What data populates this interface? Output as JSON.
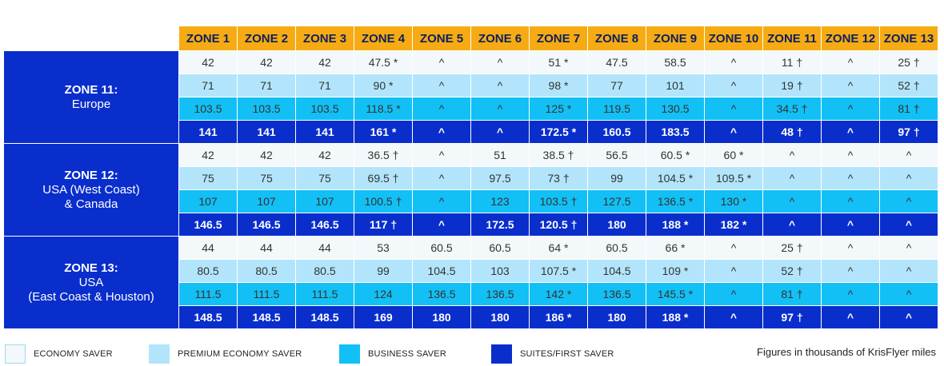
{
  "columns": [
    "ZONE 1",
    "ZONE 2",
    "ZONE 3",
    "ZONE 4",
    "ZONE 5",
    "ZONE 6",
    "ZONE 7",
    "ZONE 8",
    "ZONE 9",
    "ZONE 10",
    "ZONE 11",
    "ZONE 12",
    "ZONE 13"
  ],
  "regions": [
    {
      "name": "ZONE 11:",
      "sub": [
        "Europe"
      ],
      "rows": [
        [
          "42",
          "42",
          "42",
          "47.5 *",
          "^",
          "^",
          "51 *",
          "47.5",
          "58.5",
          "^",
          "11 †",
          "^",
          "25 †"
        ],
        [
          "71",
          "71",
          "71",
          "90 *",
          "^",
          "^",
          "98 *",
          "77",
          "101",
          "^",
          "19 †",
          "^",
          "52 †"
        ],
        [
          "103.5",
          "103.5",
          "103.5",
          "118.5 *",
          "^",
          "^",
          "125 *",
          "119.5",
          "130.5",
          "^",
          "34.5 †",
          "^",
          "81 †"
        ],
        [
          "141",
          "141",
          "141",
          "161 *",
          "^",
          "^",
          "172.5 *",
          "160.5",
          "183.5",
          "^",
          "48 †",
          "^",
          "97 †"
        ]
      ]
    },
    {
      "name": "ZONE 12:",
      "sub": [
        "USA (West Coast)",
        "& Canada"
      ],
      "rows": [
        [
          "42",
          "42",
          "42",
          "36.5 †",
          "^",
          "51",
          "38.5 †",
          "56.5",
          "60.5 *",
          "60 *",
          "^",
          "^",
          "^"
        ],
        [
          "75",
          "75",
          "75",
          "69.5 †",
          "^",
          "97.5",
          "73 †",
          "99",
          "104.5 *",
          "109.5 *",
          "^",
          "^",
          "^"
        ],
        [
          "107",
          "107",
          "107",
          "100.5 †",
          "^",
          "123",
          "103.5 †",
          "127.5",
          "136.5 *",
          "130 *",
          "^",
          "^",
          "^"
        ],
        [
          "146.5",
          "146.5",
          "146.5",
          "117 †",
          "^",
          "172.5",
          "120.5 †",
          "180",
          "188 *",
          "182 *",
          "^",
          "^",
          "^"
        ]
      ]
    },
    {
      "name": "ZONE 13:",
      "sub": [
        "USA",
        "(East Coast & Houston)"
      ],
      "rows": [
        [
          "44",
          "44",
          "44",
          "53",
          "60.5",
          "60.5",
          "64 *",
          "60.5",
          "66 *",
          "^",
          "25 †",
          "^",
          "^"
        ],
        [
          "80.5",
          "80.5",
          "80.5",
          "99",
          "104.5",
          "103",
          "107.5 *",
          "104.5",
          "109 *",
          "^",
          "52 †",
          "^",
          "^"
        ],
        [
          "111.5",
          "111.5",
          "111.5",
          "124",
          "136.5",
          "136.5",
          "142 *",
          "136.5",
          "145.5 *",
          "^",
          "81 †",
          "^",
          "^"
        ],
        [
          "148.5",
          "148.5",
          "148.5",
          "169",
          "180",
          "180",
          "186 *",
          "180",
          "188 *",
          "^",
          "97 †",
          "^",
          "^"
        ]
      ]
    }
  ],
  "legend": [
    {
      "label": "ECONOMY SAVER",
      "color": "#f3f8fb",
      "border": "#9fd8ef"
    },
    {
      "label": "PREMIUM ECONOMY SAVER",
      "color": "#b2e5fb"
    },
    {
      "label": "BUSINESS SAVER",
      "color": "#12c0f5"
    },
    {
      "label": "SUITES/FIRST SAVER",
      "color": "#0a2ecc"
    }
  ],
  "note": "Figures in thousands of KrisFlyer miles"
}
